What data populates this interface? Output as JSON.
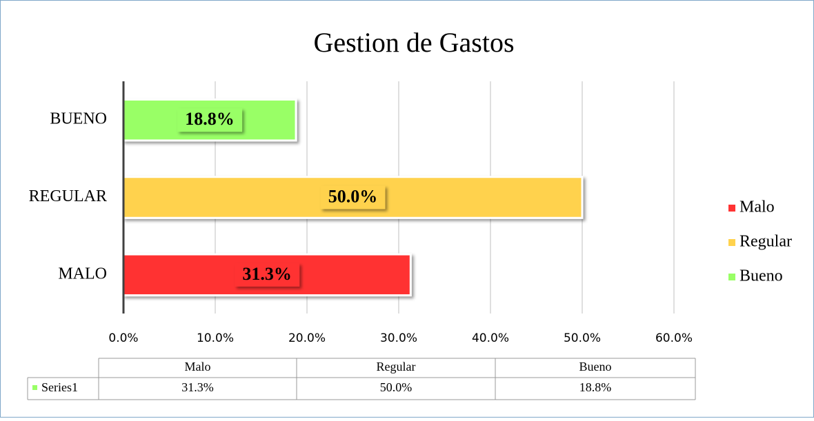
{
  "chart_data": {
    "type": "bar",
    "orientation": "horizontal",
    "title": "Gestion de Gastos",
    "categories": [
      "MALO",
      "REGULAR",
      "BUENO"
    ],
    "legend_labels": [
      "Malo",
      "Regular",
      "Bueno"
    ],
    "series": [
      {
        "name": "Series1",
        "color": "#99ff66",
        "values": [
          31.3,
          50.0,
          18.8
        ],
        "value_labels": [
          "31.3%",
          "50.0%",
          "18.8%"
        ],
        "colors": [
          "#ff3333",
          "#ffd24d",
          "#99ff66"
        ]
      }
    ],
    "xlim": [
      0,
      60
    ],
    "xticks": [
      {
        "value": 0,
        "label": "0.0%"
      },
      {
        "value": 10,
        "label": "10.0%"
      },
      {
        "value": 20,
        "label": "20.0%"
      },
      {
        "value": 30,
        "label": "30.0%"
      },
      {
        "value": 40,
        "label": "40.0%"
      },
      {
        "value": 50,
        "label": "50.0%"
      },
      {
        "value": 60,
        "label": "60.0%"
      }
    ],
    "grid": true,
    "legend": "right",
    "data_table": true
  }
}
